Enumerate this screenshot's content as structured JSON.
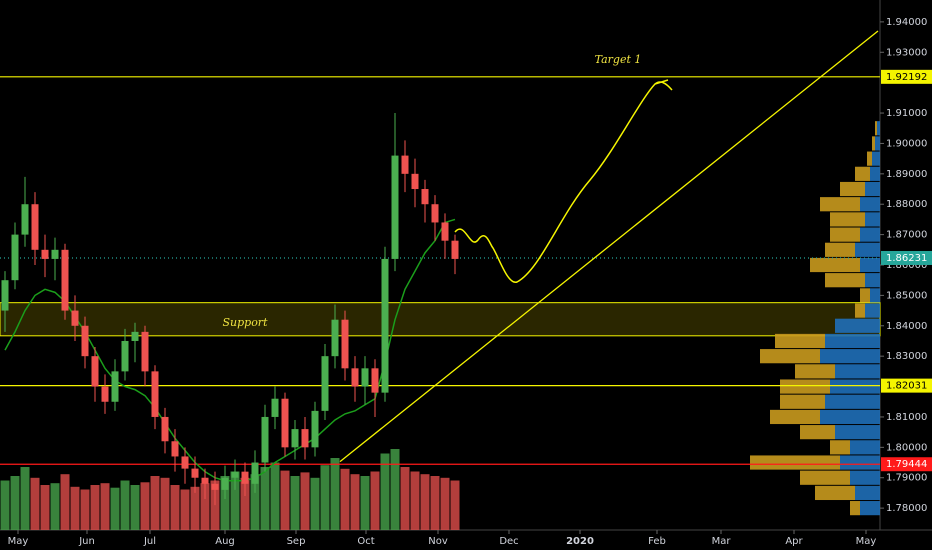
{
  "chart_data": {
    "type": "candlestick",
    "xlim": [
      -0.5,
      87.5
    ],
    "ylim": [
      1.7728,
      1.9472
    ],
    "xticks": [
      {
        "value": 1.3,
        "label": "May"
      },
      {
        "value": 8.2,
        "label": "Jun"
      },
      {
        "value": 14.5,
        "label": "Jul"
      },
      {
        "value": 22,
        "label": "Aug"
      },
      {
        "value": 29.1,
        "label": "Sep"
      },
      {
        "value": 36.1,
        "label": "Oct"
      },
      {
        "value": 43.3,
        "label": "Nov"
      },
      {
        "value": 50.4,
        "label": "Dec"
      },
      {
        "value": 57.5,
        "label": "2020"
      },
      {
        "value": 65.2,
        "label": "Feb"
      },
      {
        "value": 71.6,
        "label": "Mar"
      },
      {
        "value": 78.9,
        "label": "Apr"
      },
      {
        "value": 86.1,
        "label": "May"
      }
    ],
    "yticks": [
      {
        "value": 1.78,
        "label": "1.78000"
      },
      {
        "value": 1.79,
        "label": "1.79000"
      },
      {
        "value": 1.8,
        "label": "1.80000"
      },
      {
        "value": 1.81,
        "label": "1.81000"
      },
      {
        "value": 1.83,
        "label": "1.83000"
      },
      {
        "value": 1.84,
        "label": "1.84000"
      },
      {
        "value": 1.85,
        "label": "1.85000"
      },
      {
        "value": 1.86,
        "label": "1.86000"
      },
      {
        "value": 1.87,
        "label": "1.87000"
      },
      {
        "value": 1.88,
        "label": "1.88000"
      },
      {
        "value": 1.89,
        "label": "1.89000"
      },
      {
        "value": 1.9,
        "label": "1.90000"
      },
      {
        "value": 1.91,
        "label": "1.91000"
      },
      {
        "value": 1.93,
        "label": "1.93000"
      },
      {
        "value": 1.94,
        "label": "1.94000"
      }
    ],
    "up_color": "#4caf50",
    "down_color": "#ef5350",
    "open": [
      1.845,
      1.855,
      1.87,
      1.88,
      1.865,
      1.862,
      1.865,
      1.845,
      1.84,
      1.83,
      1.82,
      1.815,
      1.825,
      1.835,
      1.838,
      1.825,
      1.81,
      1.802,
      1.797,
      1.793,
      1.79,
      1.788,
      1.786,
      1.79,
      1.792,
      1.788,
      1.795,
      1.81,
      1.816,
      1.8,
      1.806,
      1.8,
      1.812,
      1.83,
      1.842,
      1.826,
      1.82,
      1.826,
      1.818,
      1.862,
      1.896,
      1.89,
      1.885,
      1.88,
      1.874,
      1.868
    ],
    "high": [
      1.858,
      1.874,
      1.889,
      1.884,
      1.87,
      1.869,
      1.867,
      1.85,
      1.843,
      1.833,
      1.824,
      1.829,
      1.839,
      1.841,
      1.84,
      1.827,
      1.813,
      1.806,
      1.8,
      1.797,
      1.793,
      1.792,
      1.794,
      1.796,
      1.795,
      1.799,
      1.814,
      1.82,
      1.818,
      1.809,
      1.81,
      1.815,
      1.834,
      1.847,
      1.845,
      1.83,
      1.83,
      1.829,
      1.866,
      1.91,
      1.901,
      1.895,
      1.888,
      1.883,
      1.877,
      1.87
    ],
    "low": [
      1.838,
      1.852,
      1.866,
      1.86,
      1.856,
      1.855,
      1.842,
      1.835,
      1.826,
      1.815,
      1.811,
      1.812,
      1.822,
      1.828,
      1.82,
      1.806,
      1.798,
      1.792,
      1.788,
      1.785,
      1.783,
      1.781,
      1.783,
      1.786,
      1.784,
      1.785,
      1.792,
      1.806,
      1.797,
      1.796,
      1.796,
      1.797,
      1.809,
      1.826,
      1.822,
      1.815,
      1.814,
      1.81,
      1.815,
      1.858,
      1.884,
      1.879,
      1.874,
      1.868,
      1.862,
      1.857
    ],
    "close": [
      1.855,
      1.87,
      1.88,
      1.865,
      1.862,
      1.865,
      1.845,
      1.84,
      1.83,
      1.82,
      1.815,
      1.825,
      1.835,
      1.838,
      1.825,
      1.81,
      1.802,
      1.797,
      1.793,
      1.79,
      1.788,
      1.786,
      1.79,
      1.792,
      1.788,
      1.795,
      1.81,
      1.816,
      1.8,
      1.806,
      1.8,
      1.812,
      1.83,
      1.842,
      1.826,
      1.82,
      1.826,
      1.818,
      1.862,
      1.896,
      1.89,
      1.885,
      1.88,
      1.874,
      1.868,
      1.862
    ],
    "volume": [
      55,
      60,
      70,
      58,
      50,
      52,
      62,
      48,
      45,
      50,
      52,
      47,
      55,
      50,
      53,
      60,
      58,
      50,
      45,
      48,
      52,
      55,
      60,
      65,
      58,
      62,
      70,
      75,
      66,
      60,
      64,
      58,
      72,
      80,
      68,
      62,
      60,
      65,
      85,
      90,
      70,
      65,
      62,
      60,
      58,
      55
    ],
    "ma_color": "#1b9e1b",
    "ma": [
      1.832,
      1.838,
      1.845,
      1.85,
      1.852,
      1.851,
      1.848,
      1.843,
      1.838,
      1.832,
      1.826,
      1.822,
      1.82,
      1.819,
      1.817,
      1.813,
      1.808,
      1.803,
      1.799,
      1.795,
      1.792,
      1.79,
      1.789,
      1.789,
      1.789,
      1.79,
      1.792,
      1.795,
      1.797,
      1.799,
      1.801,
      1.803,
      1.806,
      1.809,
      1.811,
      1.812,
      1.814,
      1.816,
      1.828,
      1.842,
      1.852,
      1.858,
      1.864,
      1.868,
      1.874,
      1.875
    ],
    "levels": [
      {
        "value": 1.92192,
        "color": "#f5f500",
        "label_bg": "#f5f500"
      },
      {
        "value": 1.86231,
        "color": "#26a69a",
        "label_bg": "#26a69a"
      },
      {
        "value": 1.82031,
        "color": "#f5f500",
        "label_bg": "#f5f500"
      },
      {
        "value": 1.79444,
        "color": "#ff1a1a",
        "label_bg": "#ff1a1a"
      }
    ],
    "support_zone": [
      1.8367,
      1.8476
    ],
    "trendline": {
      "x": [
        33.5,
        87.3
      ],
      "y": [
        1.7953,
        1.937
      ]
    },
    "volume_profile": {
      "levels": [
        1.78,
        1.785,
        1.79,
        1.795,
        1.8,
        1.805,
        1.81,
        1.815,
        1.82,
        1.825,
        1.83,
        1.835,
        1.84,
        1.845,
        1.85,
        1.855,
        1.86,
        1.865,
        1.87,
        1.875,
        1.88,
        1.885,
        1.89,
        1.895,
        1.9,
        1.905
      ],
      "up": [
        20,
        25,
        30,
        40,
        30,
        45,
        60,
        55,
        50,
        45,
        60,
        55,
        45,
        15,
        10,
        15,
        20,
        25,
        20,
        15,
        20,
        15,
        10,
        8,
        5,
        3
      ],
      "down": [
        10,
        40,
        50,
        90,
        20,
        35,
        50,
        45,
        50,
        40,
        60,
        50,
        0,
        10,
        10,
        40,
        50,
        30,
        30,
        35,
        40,
        25,
        15,
        5,
        3,
        2
      ],
      "up_color": "#1f6fb8",
      "down_color": "#c99a1e"
    },
    "annotations": [
      "Target 1",
      "Support"
    ]
  }
}
